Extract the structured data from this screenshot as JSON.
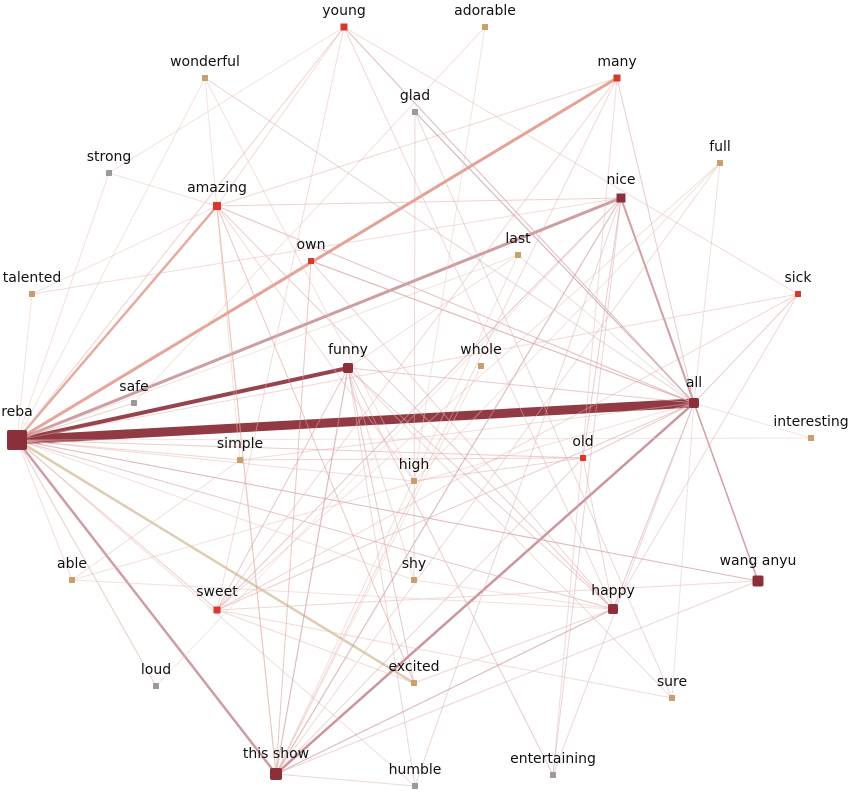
{
  "nodes": [
    {
      "label": "reba"
    },
    {
      "label": "young"
    },
    {
      "label": "adorable"
    },
    {
      "label": "wonderful"
    },
    {
      "label": "many"
    },
    {
      "label": "glad"
    },
    {
      "label": "strong"
    },
    {
      "label": "full"
    },
    {
      "label": "amazing"
    },
    {
      "label": "nice"
    },
    {
      "label": "own"
    },
    {
      "label": "last"
    },
    {
      "label": "talented"
    },
    {
      "label": "sick"
    },
    {
      "label": "funny"
    },
    {
      "label": "whole"
    },
    {
      "label": "safe"
    },
    {
      "label": "all"
    },
    {
      "label": "interesting"
    },
    {
      "label": "simple"
    },
    {
      "label": "old"
    },
    {
      "label": "high"
    },
    {
      "label": "able"
    },
    {
      "label": "shy"
    },
    {
      "label": "wang anyu"
    },
    {
      "label": "sweet"
    },
    {
      "label": "happy"
    },
    {
      "label": "excited"
    },
    {
      "label": "loud"
    },
    {
      "label": "sure"
    },
    {
      "label": "this show"
    },
    {
      "label": "humble"
    },
    {
      "label": "entertaining"
    }
  ]
}
